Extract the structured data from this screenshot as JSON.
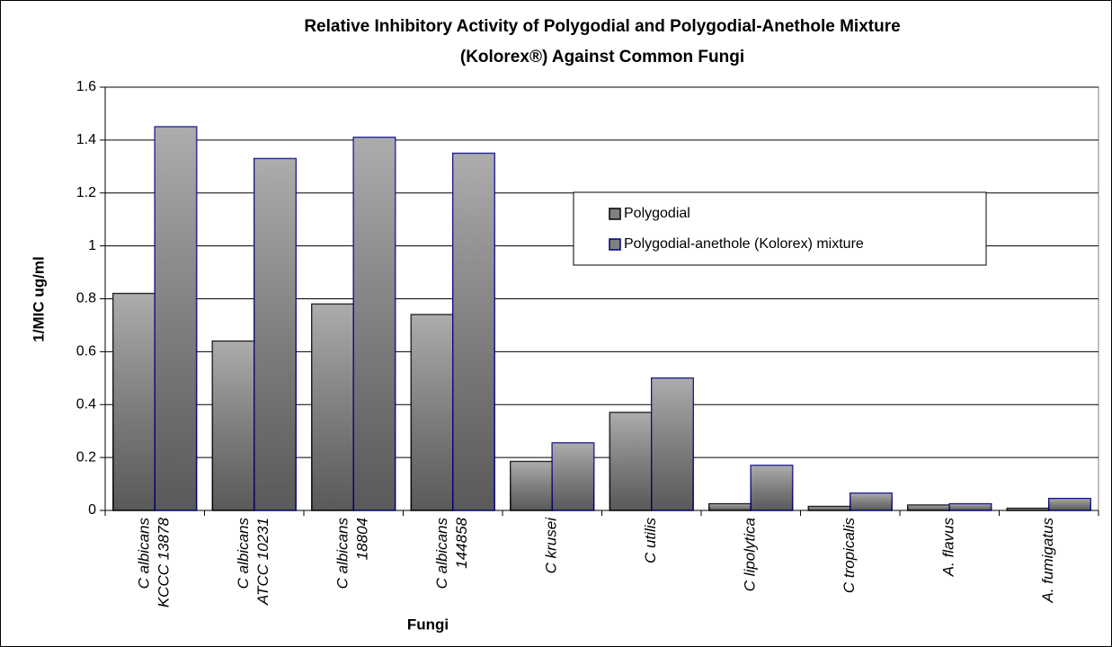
{
  "chart_data": {
    "type": "bar",
    "title": [
      "Relative Inhibitory Activity of Polygodial and Polygodial-Anethole Mixture",
      "(Kolorex®) Against Common Fungi"
    ],
    "categories": [
      [
        "C albicans",
        "KCCC 13878"
      ],
      [
        "C albicans",
        "ATCC 10231"
      ],
      [
        "C albicans",
        "18804"
      ],
      [
        "C albicans",
        "144858"
      ],
      [
        "C krusei"
      ],
      [
        "C utilis"
      ],
      [
        "C lipolytica"
      ],
      [
        "C tropicalis"
      ],
      [
        "A. flavus"
      ],
      [
        "A. fumigatus"
      ]
    ],
    "series": [
      {
        "name": "Polygodial",
        "color": "#808080",
        "edgecolor": "#000000",
        "values": [
          0.82,
          0.64,
          0.78,
          0.74,
          0.185,
          0.37,
          0.025,
          0.015,
          0.02,
          0.008
        ]
      },
      {
        "name": "Polygodial-anethole (Kolorex) mixture",
        "color": "#808080",
        "edgecolor": "#000080",
        "values": [
          1.45,
          1.33,
          1.41,
          1.35,
          0.255,
          0.5,
          0.17,
          0.065,
          0.025,
          0.045
        ]
      }
    ],
    "xlabel": "Fungi",
    "ylabel": "1/MIC ug/ml",
    "ylim": [
      0,
      1.6
    ],
    "yticks": [
      0,
      0.2,
      0.4,
      0.6,
      0.8,
      1,
      1.2,
      1.4,
      1.6
    ],
    "grid": true,
    "legend": "center right"
  }
}
